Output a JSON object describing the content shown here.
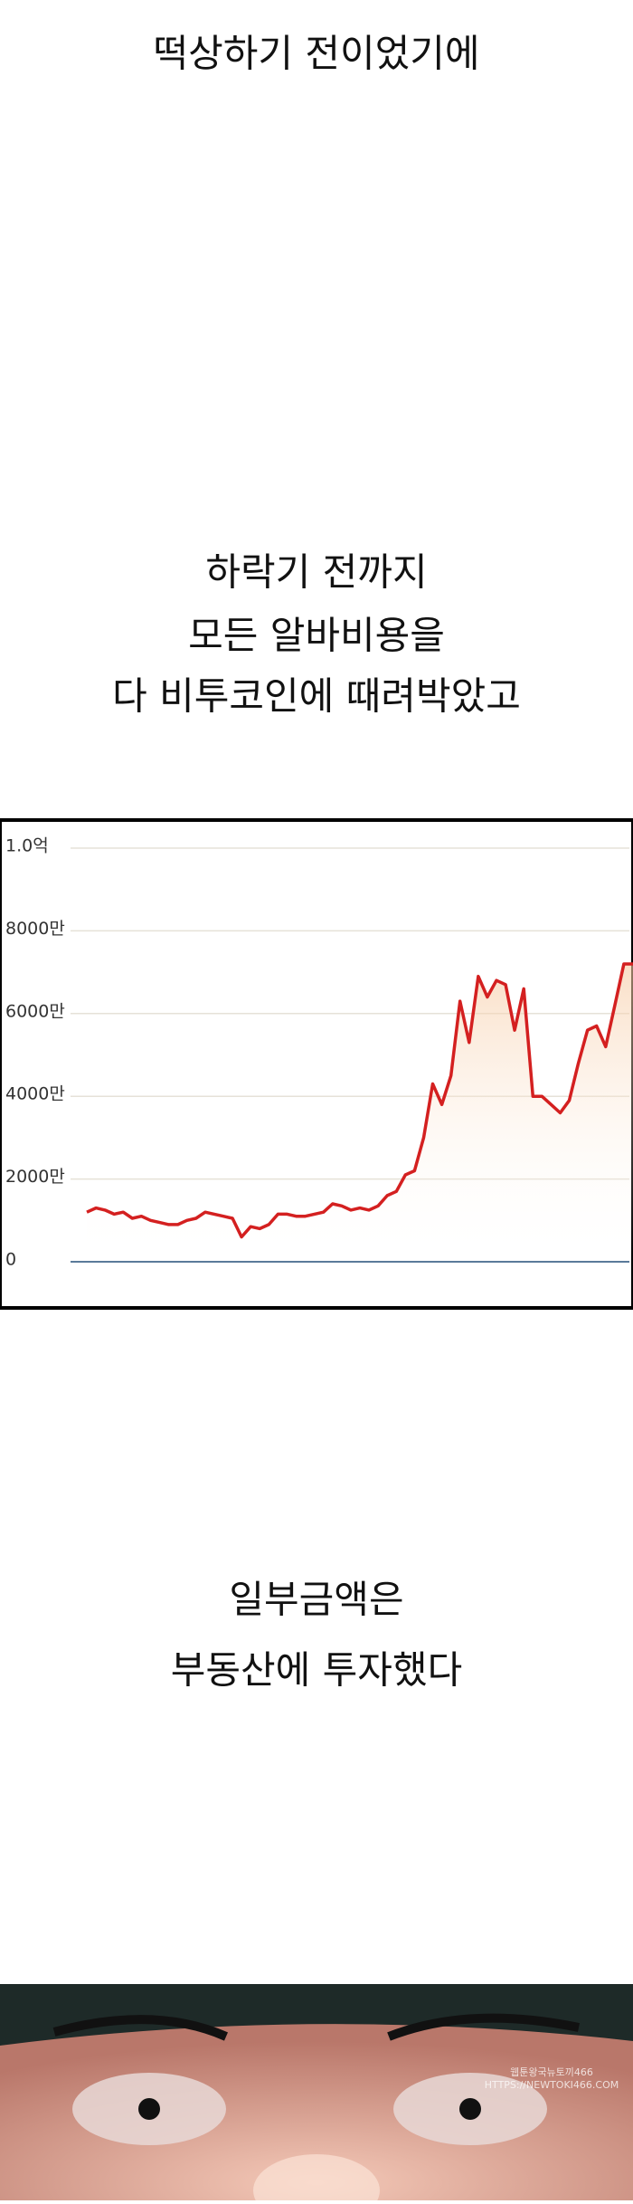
{
  "captions": [
    [
      "떡상하기 전이었기에"
    ],
    [
      "하락기 전까지",
      "모든 알바비용을",
      "다 비투코인에 때려박았고"
    ],
    [
      "일부금액은",
      "부동산에 투자했다"
    ]
  ],
  "chart_data": {
    "type": "line",
    "color": "#d42020",
    "ylim": [
      0,
      10000
    ],
    "yticks": [
      0,
      {
        "value": 2000,
        "label": "2000만"
      },
      {
        "value": 4000,
        "label": "4000만"
      },
      {
        "value": 6000,
        "label": "6000만"
      },
      {
        "value": 8000,
        "label": "8000만"
      },
      {
        "value": 10000,
        "label": "1.0억"
      }
    ],
    "grid": true,
    "values": [
      1200,
      1300,
      1250,
      1150,
      1200,
      1050,
      1100,
      1000,
      950,
      900,
      900,
      1000,
      1050,
      1200,
      1150,
      1100,
      1050,
      600,
      850,
      800,
      900,
      1150,
      1150,
      1100,
      1100,
      1150,
      1200,
      1400,
      1350,
      1250,
      1300,
      1250,
      1350,
      1600,
      1700,
      2100,
      2200,
      3000,
      4300,
      3800,
      4500,
      6300,
      5300,
      6900,
      6400,
      6800,
      6700,
      5600,
      6600,
      4000,
      4000,
      3800,
      3600,
      3900,
      4800,
      5600,
      5700,
      5200,
      6200,
      7200,
      7200
    ]
  },
  "watermark": [
    "웹툰왕국뉴토끼466",
    "HTTPS://NEWTOKI466.COM"
  ]
}
